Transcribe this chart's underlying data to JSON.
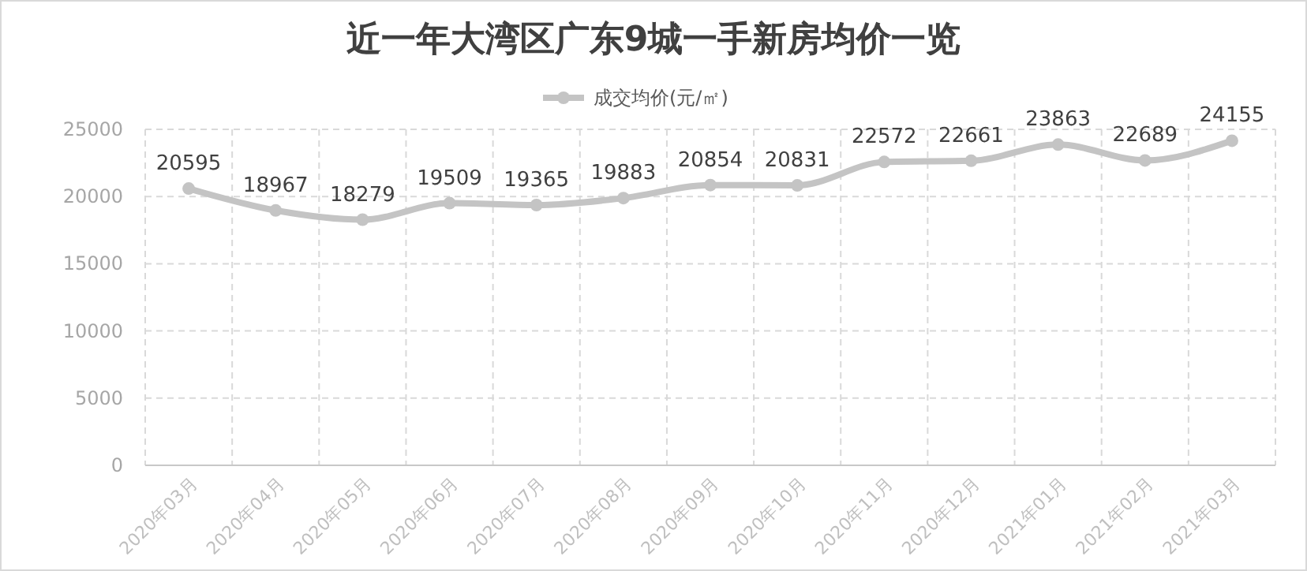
{
  "chart_data": {
    "type": "line",
    "title": "近一年大湾区广东9城一手新房均价一览",
    "categories": [
      "2020年03月",
      "2020年04月",
      "2020年05月",
      "2020年06月",
      "2020年07月",
      "2020年08月",
      "2020年09月",
      "2020年10月",
      "2020年11月",
      "2020年12月",
      "2021年01月",
      "2021年02月",
      "2021年03月"
    ],
    "series": [
      {
        "name": "成交均价(元/㎡)",
        "color": "#c4c4c4",
        "values": [
          20595,
          18967,
          18279,
          19509,
          19365,
          19883,
          20854,
          20831,
          22572,
          22661,
          23863,
          22689,
          24155
        ]
      }
    ],
    "ylim": [
      0,
      25000
    ],
    "yticks": [
      0,
      5000,
      10000,
      15000,
      20000,
      25000
    ],
    "grid": true,
    "legend": "top",
    "marker": "circle",
    "line_style": "solid",
    "data_labels": true
  }
}
